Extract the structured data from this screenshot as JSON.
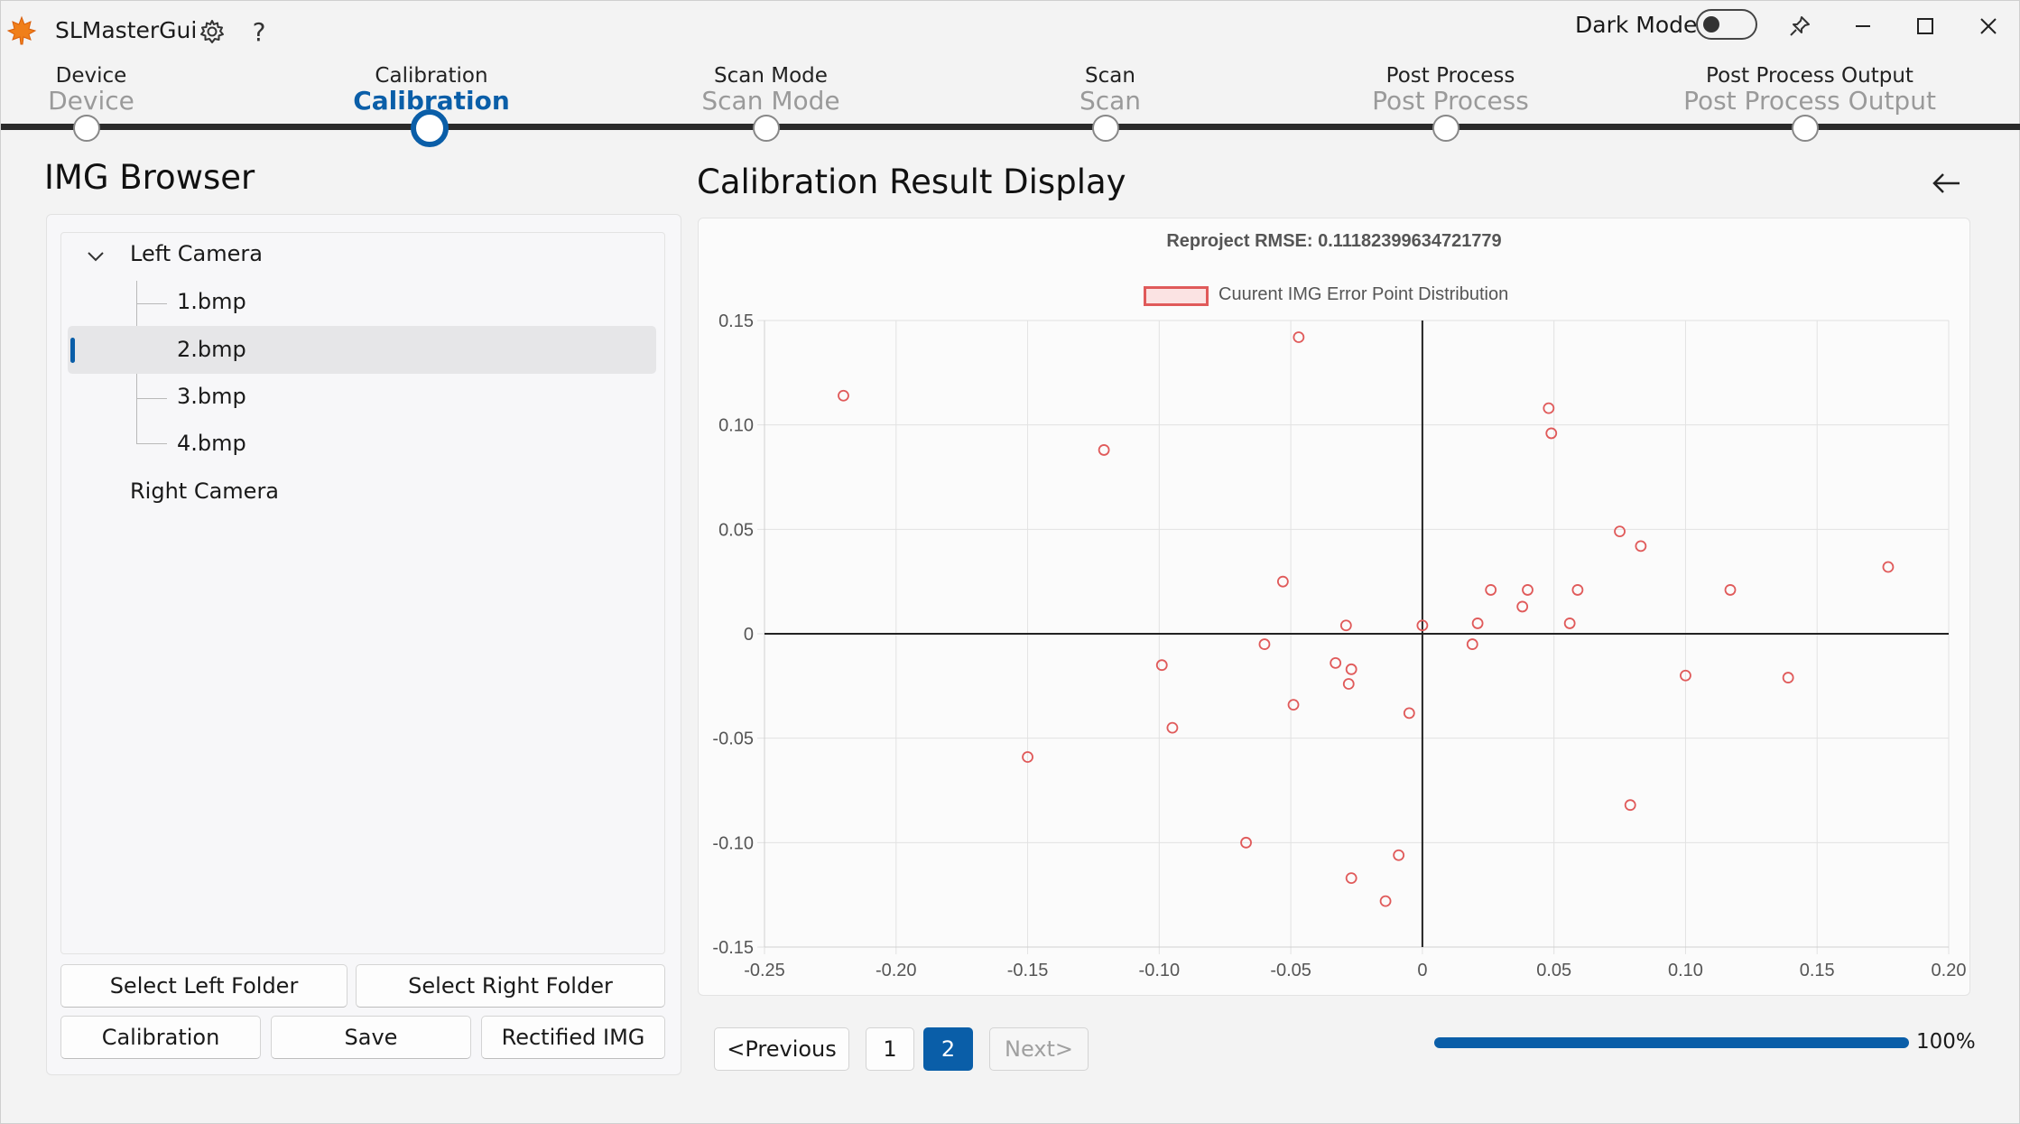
{
  "app": {
    "title": "SLMasterGui"
  },
  "titlebar": {
    "dark_mode_label": "Dark Mode",
    "dark_mode_on": false
  },
  "stepper": {
    "steps": [
      {
        "small": "Device",
        "big": "Device"
      },
      {
        "small": "Calibration",
        "big": "Calibration"
      },
      {
        "small": "Scan Mode",
        "big": "Scan Mode"
      },
      {
        "small": "Scan",
        "big": "Scan"
      },
      {
        "small": "Post Process",
        "big": "Post Process"
      },
      {
        "small": "Post Process Output",
        "big": "Post Process Output"
      }
    ],
    "active_index": 1
  },
  "browser": {
    "title": "IMG Browser",
    "left_camera": "Left Camera",
    "files": [
      "1.bmp",
      "2.bmp",
      "3.bmp",
      "4.bmp"
    ],
    "selected_file": "2.bmp",
    "right_camera": "Right Camera",
    "buttons": {
      "select_left": "Select Left Folder",
      "select_right": "Select Right Folder",
      "calibration": "Calibration",
      "save": "Save",
      "rectified": "Rectified IMG"
    }
  },
  "result": {
    "title": "Calibration Result Display",
    "pager": {
      "previous": "<Previous",
      "page1": "1",
      "page2": "2",
      "next": "Next>",
      "current_page": 2
    },
    "progress": {
      "value": 100,
      "label": "100%"
    }
  },
  "colors": {
    "accent": "#0a5ea8",
    "point": "#e05a5a"
  },
  "icons": {
    "logo": "maple-leaf-icon",
    "settings": "gear-icon",
    "help": "question-icon",
    "pin": "pin-icon",
    "back": "arrow-left-icon"
  },
  "chart_data": {
    "type": "scatter",
    "title": "Reproject RMSE: 0.11182399634721779",
    "legend": "Cuurent IMG Error Point Distribution",
    "legend_position": "top",
    "xlim": [
      -0.25,
      0.2
    ],
    "ylim": [
      -0.15,
      0.15
    ],
    "xticks": [
      "-0.25",
      "-0.20",
      "-0.15",
      "-0.10",
      "-0.05",
      "0",
      "0.05",
      "0.10",
      "0.15",
      "0.20"
    ],
    "yticks": [
      "0.15",
      "0.10",
      "0.05",
      "0",
      "-0.05",
      "-0.10",
      "-0.15"
    ],
    "grid": true,
    "series": [
      {
        "name": "Cuurent IMG Error Point Distribution",
        "points": [
          [
            -0.22,
            0.114
          ],
          [
            -0.047,
            0.142
          ],
          [
            -0.121,
            0.088
          ],
          [
            0.048,
            0.108
          ],
          [
            0.049,
            0.096
          ],
          [
            0.075,
            0.049
          ],
          [
            0.083,
            0.042
          ],
          [
            0.177,
            0.032
          ],
          [
            -0.053,
            0.025
          ],
          [
            0.026,
            0.021
          ],
          [
            0.04,
            0.021
          ],
          [
            0.059,
            0.021
          ],
          [
            0.117,
            0.021
          ],
          [
            0.038,
            0.013
          ],
          [
            0.021,
            0.005
          ],
          [
            0.056,
            0.005
          ],
          [
            -0.029,
            0.004
          ],
          [
            0.0,
            0.004
          ],
          [
            -0.06,
            -0.005
          ],
          [
            0.019,
            -0.005
          ],
          [
            -0.099,
            -0.015
          ],
          [
            -0.033,
            -0.014
          ],
          [
            -0.027,
            -0.017
          ],
          [
            -0.028,
            -0.024
          ],
          [
            0.1,
            -0.02
          ],
          [
            0.139,
            -0.021
          ],
          [
            -0.049,
            -0.034
          ],
          [
            -0.005,
            -0.038
          ],
          [
            -0.095,
            -0.045
          ],
          [
            -0.15,
            -0.059
          ],
          [
            0.079,
            -0.082
          ],
          [
            -0.067,
            -0.1
          ],
          [
            -0.009,
            -0.106
          ],
          [
            -0.027,
            -0.117
          ],
          [
            -0.014,
            -0.128
          ]
        ]
      }
    ]
  }
}
